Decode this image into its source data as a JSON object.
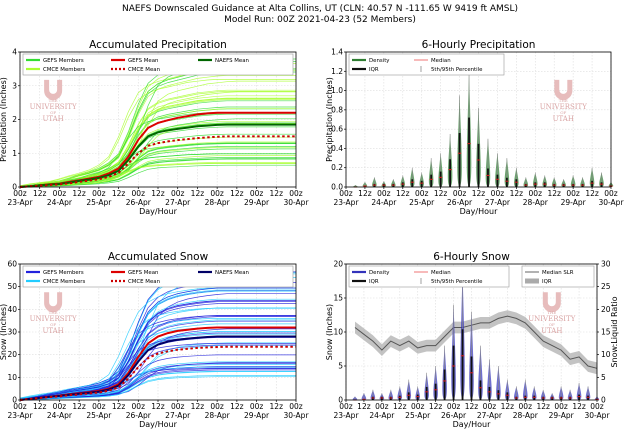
{
  "header": {
    "line1": "NAEFS Downscaled Guidance at Alta Collins, UT (CLN: 40.57 N -111.65 W 9419 ft AMSL)",
    "line2": "Model Run: 00Z 2021-04-23 (52 Members)"
  },
  "watermark": {
    "the": "THE",
    "university": "UNIVERSITY",
    "of": "OF",
    "utah": "UTAH"
  },
  "colors": {
    "gefs_precip": "#33dd33",
    "cmce_precip": "#aaff33",
    "naefs_precip": "#006600",
    "gefs_snow": "#2222dd",
    "cmce_snow": "#22ccff",
    "naefs_snow": "#000066",
    "mean_gefs": "#dd0000",
    "mean_cmce": "#cc0000",
    "median_slr": "#555555",
    "iqr_fill": "#aaaaaa"
  },
  "x_ticks": [
    "00z",
    "12z",
    "00z",
    "12z",
    "00z",
    "12z",
    "00z",
    "12z",
    "00z",
    "12z",
    "00z",
    "12z",
    "00z",
    "12z",
    "00z"
  ],
  "x_days": [
    "23-Apr",
    "24-Apr",
    "25-Apr",
    "26-Apr",
    "27-Apr",
    "28-Apr",
    "29-Apr",
    "30-Apr"
  ],
  "x_label": "Day/Hour",
  "chart_data": [
    {
      "type": "line",
      "title": "Accumulated Precipitation",
      "xlabel": "Day/Hour",
      "ylabel": "Precipitation (Inches)",
      "ylim": [
        0,
        4
      ],
      "y_ticks": [
        "0",
        "1",
        "2",
        "3",
        "4"
      ],
      "legend": [
        "GEFS Members",
        "GEFS Mean",
        "NAEFS Mean",
        "CMCE Members",
        "CMCE Mean"
      ],
      "hours": [
        0,
        6,
        12,
        18,
        24,
        30,
        36,
        42,
        48,
        54,
        60,
        66,
        72,
        78,
        84,
        90,
        96,
        102,
        108,
        114,
        120,
        126,
        132,
        138,
        144,
        150,
        156,
        162,
        168
      ],
      "series": [
        {
          "name": "GEFS Mean",
          "values": [
            0,
            0.02,
            0.05,
            0.08,
            0.1,
            0.15,
            0.2,
            0.25,
            0.3,
            0.4,
            0.55,
            0.9,
            1.4,
            1.75,
            1.9,
            1.98,
            2.05,
            2.1,
            2.15,
            2.18,
            2.2,
            2.2,
            2.2,
            2.2,
            2.2,
            2.2,
            2.2,
            2.2,
            2.2
          ]
        },
        {
          "name": "NAEFS Mean",
          "values": [
            0,
            0.02,
            0.05,
            0.07,
            0.09,
            0.13,
            0.18,
            0.22,
            0.27,
            0.35,
            0.48,
            0.8,
            1.2,
            1.5,
            1.62,
            1.68,
            1.72,
            1.76,
            1.8,
            1.82,
            1.84,
            1.85,
            1.85,
            1.85,
            1.85,
            1.85,
            1.85,
            1.85,
            1.85
          ]
        },
        {
          "name": "CMCE Mean",
          "values": [
            0,
            0.02,
            0.04,
            0.06,
            0.08,
            0.11,
            0.15,
            0.19,
            0.23,
            0.3,
            0.42,
            0.7,
            1.0,
            1.22,
            1.3,
            1.35,
            1.39,
            1.42,
            1.45,
            1.47,
            1.49,
            1.5,
            1.5,
            1.5,
            1.5,
            1.5,
            1.5,
            1.5,
            1.5
          ]
        }
      ],
      "members": {
        "count": 52,
        "final_min": 0.6,
        "final_max": 3.8
      }
    },
    {
      "type": "bar",
      "title": "6-Hourly Precipitation",
      "xlabel": "Day/Hour",
      "ylabel": "Precipitation (Inches)",
      "ylim": [
        0,
        1.4
      ],
      "y_ticks": [
        "0.0",
        "0.2",
        "0.4",
        "0.6",
        "0.8",
        "1.0",
        "1.2",
        "1.4"
      ],
      "legend": [
        "Density",
        "IQR",
        "Median",
        "5th/95th Percentile"
      ],
      "hours": [
        6,
        12,
        18,
        24,
        30,
        36,
        42,
        48,
        54,
        60,
        66,
        72,
        78,
        84,
        90,
        96,
        102,
        108,
        114,
        120,
        126,
        132,
        138,
        144,
        150,
        156,
        162,
        168
      ],
      "p95": [
        0.02,
        0.05,
        0.1,
        0.06,
        0.08,
        0.12,
        0.2,
        0.15,
        0.3,
        0.35,
        0.55,
        0.95,
        1.18,
        0.82,
        0.5,
        0.35,
        0.3,
        0.2,
        0.1,
        0.15,
        0.12,
        0.1,
        0.08,
        0.12,
        0.1,
        0.2,
        0.15,
        0.05
      ],
      "median": [
        0.0,
        0.01,
        0.02,
        0.02,
        0.02,
        0.03,
        0.05,
        0.04,
        0.08,
        0.1,
        0.18,
        0.35,
        0.45,
        0.28,
        0.12,
        0.08,
        0.06,
        0.05,
        0.02,
        0.03,
        0.03,
        0.02,
        0.02,
        0.02,
        0.02,
        0.04,
        0.03,
        0.01
      ]
    },
    {
      "type": "line",
      "title": "Accumulated Snow",
      "xlabel": "Day/Hour",
      "ylabel": "Snow (Inches)",
      "ylim": [
        0,
        60
      ],
      "y_ticks": [
        "0",
        "10",
        "20",
        "30",
        "40",
        "50",
        "60"
      ],
      "legend": [
        "GEFS Members",
        "GEFS Mean",
        "NAEFS Mean",
        "CMCE Members",
        "CMCE Mean"
      ],
      "hours": [
        0,
        6,
        12,
        18,
        24,
        30,
        36,
        42,
        48,
        54,
        60,
        66,
        72,
        78,
        84,
        90,
        96,
        102,
        108,
        114,
        120,
        126,
        132,
        138,
        144,
        150,
        156,
        162,
        168
      ],
      "series": [
        {
          "name": "GEFS Mean",
          "values": [
            0,
            0.5,
            1,
            1.5,
            2,
            2.5,
            3,
            3.5,
            4,
            5,
            7,
            12,
            19,
            25,
            28,
            29.5,
            30.5,
            31,
            31.5,
            31.8,
            32,
            32,
            32,
            32,
            32,
            32,
            32,
            32,
            32
          ]
        },
        {
          "name": "NAEFS Mean",
          "values": [
            0,
            0.5,
            1,
            1.4,
            1.8,
            2.3,
            2.8,
            3.2,
            3.7,
            4.6,
            6.3,
            11,
            17,
            22,
            24.5,
            25.8,
            26.6,
            27.1,
            27.5,
            27.8,
            28,
            28,
            28,
            28,
            28,
            28,
            28,
            28,
            28
          ]
        },
        {
          "name": "CMCE Mean",
          "values": [
            0,
            0.4,
            0.9,
            1.3,
            1.6,
            2.1,
            2.5,
            2.9,
            3.3,
            4.1,
            5.6,
            9.5,
            14.5,
            18.5,
            20.5,
            21.5,
            22.2,
            22.6,
            23,
            23.2,
            23.4,
            23.5,
            23.5,
            23.5,
            23.5,
            23.5,
            23.5,
            23.5,
            23.5
          ]
        }
      ],
      "members": {
        "count": 52,
        "final_min": 10,
        "final_max": 57
      }
    },
    {
      "type": "bar",
      "title": "6-Hourly Snow",
      "xlabel": "Day/Hour",
      "ylabel": "Snow (Inches)",
      "y2label": "Snow:Liquid Ratio",
      "ylim": [
        0,
        20
      ],
      "y2lim": [
        0,
        30
      ],
      "y_ticks": [
        "0",
        "5",
        "10",
        "15",
        "20"
      ],
      "y2_ticks": [
        "0",
        "5",
        "10",
        "15",
        "20",
        "25",
        "30"
      ],
      "legend": [
        "Density",
        "IQR",
        "Median",
        "5th/95th Percentile",
        "Median SLR",
        "IQR"
      ],
      "hours": [
        6,
        12,
        18,
        24,
        30,
        36,
        42,
        48,
        54,
        60,
        66,
        72,
        78,
        84,
        90,
        96,
        102,
        108,
        114,
        120,
        126,
        132,
        138,
        144,
        150,
        156,
        162,
        168
      ],
      "p95": [
        0.5,
        1,
        1.5,
        1,
        1.5,
        2,
        3,
        2,
        4,
        5,
        8,
        14,
        19,
        13,
        8,
        6,
        5,
        3,
        2,
        3,
        2,
        1.5,
        1,
        2,
        1.5,
        2.5,
        2,
        0.5
      ],
      "median": [
        0.0,
        0.1,
        0.3,
        0.3,
        0.3,
        0.4,
        0.7,
        0.5,
        1.2,
        1.5,
        2.8,
        5,
        6.5,
        4,
        1.8,
        1.2,
        0.9,
        0.7,
        0.3,
        0.4,
        0.4,
        0.3,
        0.3,
        0.3,
        0.3,
        0.5,
        0.4,
        0.1
      ],
      "slr_median": [
        16,
        14.5,
        13,
        11,
        13,
        12,
        13,
        11.5,
        12,
        12,
        14,
        16,
        16,
        16.5,
        17,
        17,
        18,
        18.5,
        18,
        17,
        15,
        13,
        12,
        11,
        9,
        9.5,
        7.5,
        7
      ]
    }
  ]
}
